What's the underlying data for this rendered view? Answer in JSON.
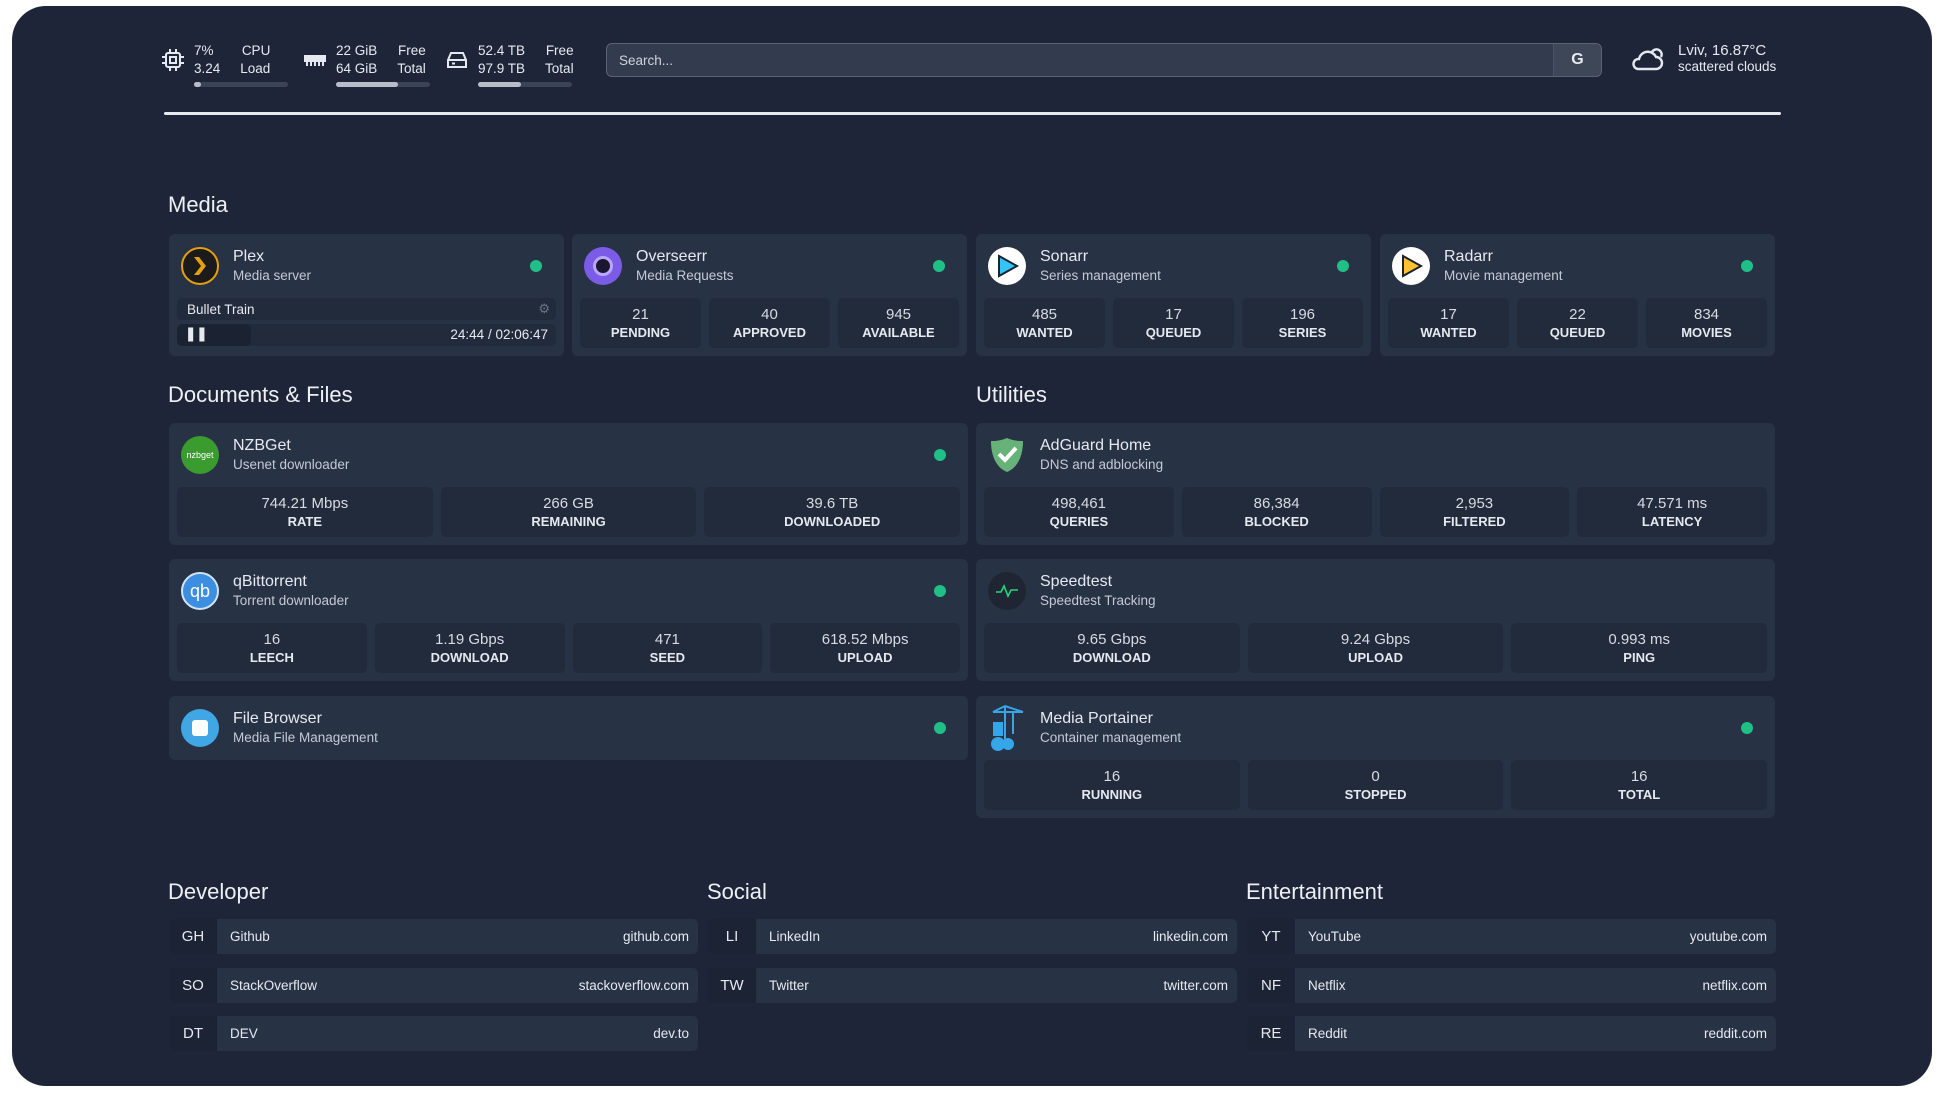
{
  "header": {
    "cpu": {
      "icon": "cpu-icon",
      "usage": "7%",
      "load": "3.24",
      "usage_label": "CPU",
      "load_label": "Load",
      "fill_percent": 7
    },
    "memory": {
      "icon": "memory-icon",
      "free": "22 GiB",
      "total": "64 GiB",
      "free_label": "Free",
      "total_label": "Total",
      "fill_percent": 66
    },
    "disk": {
      "icon": "disk-icon",
      "free": "52.4 TB",
      "total": "97.9 TB",
      "free_label": "Free",
      "total_label": "Total",
      "fill_percent": 46
    },
    "search": {
      "placeholder": "Search...",
      "engine_button": "G"
    },
    "weather": {
      "icon": "cloud-sun-icon",
      "location_temp": "Lviv, 16.87°C",
      "condition": "scattered clouds"
    }
  },
  "sections": {
    "media": "Media",
    "docs": "Documents & Files",
    "utilities": "Utilities",
    "developer": "Developer",
    "social": "Social",
    "entertainment": "Entertainment"
  },
  "plex": {
    "name": "Plex",
    "desc": "Media server",
    "now_playing": "Bullet Train",
    "time": "24:44 / 02:06:47",
    "progress_fraction": 0.196,
    "status_color": "#1fbf86"
  },
  "services": {
    "overseerr": {
      "name": "Overseerr",
      "desc": "Media Requests",
      "stats": [
        {
          "v": "21",
          "l": "PENDING"
        },
        {
          "v": "40",
          "l": "APPROVED"
        },
        {
          "v": "945",
          "l": "AVAILABLE"
        }
      ]
    },
    "sonarr": {
      "name": "Sonarr",
      "desc": "Series management",
      "stats": [
        {
          "v": "485",
          "l": "WANTED"
        },
        {
          "v": "17",
          "l": "QUEUED"
        },
        {
          "v": "196",
          "l": "SERIES"
        }
      ]
    },
    "radarr": {
      "name": "Radarr",
      "desc": "Movie management",
      "stats": [
        {
          "v": "17",
          "l": "WANTED"
        },
        {
          "v": "22",
          "l": "QUEUED"
        },
        {
          "v": "834",
          "l": "MOVIES"
        }
      ]
    },
    "nzbget": {
      "name": "NZBGet",
      "desc": "Usenet downloader",
      "icon_text": "nzbget",
      "stats": [
        {
          "v": "744.21 Mbps",
          "l": "RATE"
        },
        {
          "v": "266 GB",
          "l": "REMAINING"
        },
        {
          "v": "39.6 TB",
          "l": "DOWNLOADED"
        }
      ]
    },
    "qbittorrent": {
      "name": "qBittorrent",
      "desc": "Torrent downloader",
      "icon_text": "qb",
      "stats": [
        {
          "v": "16",
          "l": "LEECH"
        },
        {
          "v": "1.19 Gbps",
          "l": "DOWNLOAD"
        },
        {
          "v": "471",
          "l": "SEED"
        },
        {
          "v": "618.52 Mbps",
          "l": "UPLOAD"
        }
      ]
    },
    "filebrowser": {
      "name": "File Browser",
      "desc": "Media File Management",
      "stats": []
    },
    "adguard": {
      "name": "AdGuard Home",
      "desc": "DNS and adblocking",
      "stats": [
        {
          "v": "498,461",
          "l": "QUERIES"
        },
        {
          "v": "86,384",
          "l": "BLOCKED"
        },
        {
          "v": "2,953",
          "l": "FILTERED"
        },
        {
          "v": "47.571 ms",
          "l": "LATENCY"
        }
      ]
    },
    "speedtest": {
      "name": "Speedtest",
      "desc": "Speedtest Tracking",
      "stats": [
        {
          "v": "9.65 Gbps",
          "l": "DOWNLOAD"
        },
        {
          "v": "9.24 Gbps",
          "l": "UPLOAD"
        },
        {
          "v": "0.993 ms",
          "l": "PING"
        }
      ]
    },
    "portainer": {
      "name": "Media Portainer",
      "desc": "Container management",
      "stats": [
        {
          "v": "16",
          "l": "RUNNING"
        },
        {
          "v": "0",
          "l": "STOPPED"
        },
        {
          "v": "16",
          "l": "TOTAL"
        }
      ]
    }
  },
  "bookmarks": {
    "developer": [
      {
        "abbr": "GH",
        "name": "Github",
        "url": "github.com"
      },
      {
        "abbr": "SO",
        "name": "StackOverflow",
        "url": "stackoverflow.com"
      },
      {
        "abbr": "DT",
        "name": "DEV",
        "url": "dev.to"
      }
    ],
    "social": [
      {
        "abbr": "LI",
        "name": "LinkedIn",
        "url": "linkedin.com"
      },
      {
        "abbr": "TW",
        "name": "Twitter",
        "url": "twitter.com"
      }
    ],
    "entertainment": [
      {
        "abbr": "YT",
        "name": "YouTube",
        "url": "youtube.com"
      },
      {
        "abbr": "NF",
        "name": "Netflix",
        "url": "netflix.com"
      },
      {
        "abbr": "RE",
        "name": "Reddit",
        "url": "reddit.com"
      }
    ]
  }
}
